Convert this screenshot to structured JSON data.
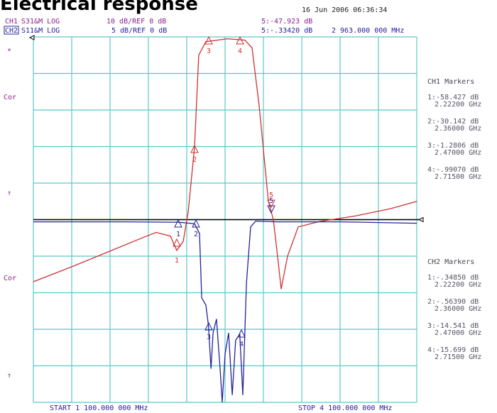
{
  "title": "Electrical response",
  "timestamp": "16 Jun 2006  06:36:34",
  "channels": [
    {
      "name": "CH1",
      "measure": "S31&M LOG",
      "scale": "10 dB/REF 0 dB",
      "marker5": "5:-47.923 dB"
    },
    {
      "name": "CH2",
      "measure": "S11&M LOG",
      "scale": "5 dB/REF 0 dB",
      "marker5": "5:-.33420 dB"
    }
  ],
  "stimulus_marker": "2 963.000 000 MHz",
  "left_labels": [
    "*",
    "Cor",
    "↑",
    "Cor",
    "↑"
  ],
  "ch1_markers": {
    "title": "CH1 Markers",
    "items": [
      {
        "value": "1:-58.427 dB",
        "freq": "2.22200 GHz"
      },
      {
        "value": "2:-30.142 dB",
        "freq": "2.36000 GHz"
      },
      {
        "value": "3:-1.2806 dB",
        "freq": "2.47000 GHz"
      },
      {
        "value": "4:-.99070 dB",
        "freq": "2.71500 GHz"
      }
    ]
  },
  "ch2_markers": {
    "title": "CH2 Markers",
    "items": [
      {
        "value": "1:-.34850 dB",
        "freq": "2.22200 GHz"
      },
      {
        "value": "2:-.56390 dB",
        "freq": "2.36000 GHz"
      },
      {
        "value": "3:-14.541 dB",
        "freq": "2.47000 GHz"
      },
      {
        "value": "4:-15.699 dB",
        "freq": "2.71500 GHz"
      }
    ]
  },
  "marker_ids": [
    "1",
    "2",
    "3",
    "4",
    "5"
  ],
  "start": "START 1 100.000 000 MHz",
  "stop": "STOP 4 100.000 000 MHz",
  "chart_data": {
    "type": "line",
    "xlim": [
      1100,
      4100
    ],
    "ylim": [
      -100,
      0
    ],
    "y2lim": [
      -25,
      25
    ],
    "series": [
      {
        "name": "CH1",
        "color": "#d03030",
        "x": [
          1100,
          1394,
          1672,
          1950,
          2061,
          2172,
          2222,
          2272,
          2311,
          2361,
          2394,
          2450,
          2617,
          2756,
          2811,
          2867,
          2939,
          2978,
          3017,
          3039,
          3089,
          3172,
          3339,
          3617,
          3894,
          4100
        ],
        "values": [
          -67,
          -63,
          -59,
          -55,
          -53.5,
          -54.5,
          -58.4,
          -56,
          -48,
          -30.1,
          -5,
          -1.3,
          -0.5,
          -0.9,
          -3,
          -19,
          -45,
          -50,
          -62,
          -69,
          -60,
          -52,
          -50.5,
          -49,
          -47,
          -45
        ]
      },
      {
        "name": "CH2",
        "color": "#23239a",
        "axis": "y2",
        "x": [
          1100,
          1800,
          2200,
          2222,
          2300,
          2361,
          2400,
          2417,
          2450,
          2470,
          2490,
          2506,
          2533,
          2561,
          2578,
          2600,
          2628,
          2656,
          2683,
          2715,
          2739,
          2767,
          2800,
          2839,
          3000,
          3500,
          4100
        ],
        "values": [
          -0.3,
          -0.3,
          -0.35,
          -0.35,
          -0.45,
          -0.56,
          -1.9,
          -10.7,
          -11.7,
          -14.5,
          -20.4,
          -15.5,
          -13.6,
          -20.4,
          -25,
          -18.4,
          -15.5,
          -24,
          -16.5,
          -15.7,
          -24,
          -8.7,
          -1,
          -0.2,
          -0.3,
          -0.3,
          -0.5
        ]
      }
    ]
  }
}
